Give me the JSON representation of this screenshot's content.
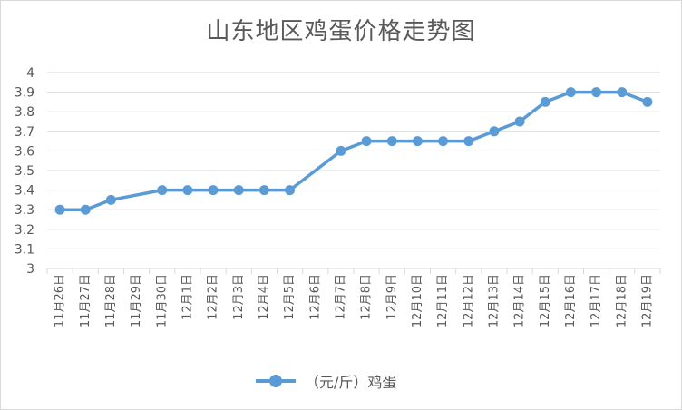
{
  "chart_data": {
    "type": "line",
    "title": "山东地区鸡蛋价格走势图",
    "categories": [
      "11月26日",
      "11月27日",
      "11月28日",
      "11月29日",
      "11月30日",
      "12月1日",
      "12月2日",
      "12月3日",
      "12月4日",
      "12月5日",
      "12月6日",
      "12月7日",
      "12月8日",
      "12月9日",
      "12月10日",
      "12月11日",
      "12月12日",
      "12月13日",
      "12月14日",
      "12月15日",
      "12月16日",
      "12月17日",
      "12月18日",
      "12月19日"
    ],
    "series": [
      {
        "name": "（元/斤）鸡蛋",
        "color": "#5b9bd5",
        "values": [
          3.3,
          3.3,
          3.35,
          null,
          3.4,
          3.4,
          3.4,
          3.4,
          3.4,
          3.4,
          null,
          3.6,
          3.65,
          3.65,
          3.65,
          3.65,
          3.65,
          3.7,
          3.75,
          3.85,
          3.9,
          3.9,
          3.9,
          3.85
        ]
      }
    ],
    "ylim": [
      3,
      4
    ],
    "yticks": [
      "3",
      "3.1",
      "3.2",
      "3.3",
      "3.4",
      "3.5",
      "3.6",
      "3.7",
      "3.8",
      "3.9",
      "4"
    ],
    "grid": true,
    "legend_position": "bottom",
    "gap_handling": "connect"
  }
}
